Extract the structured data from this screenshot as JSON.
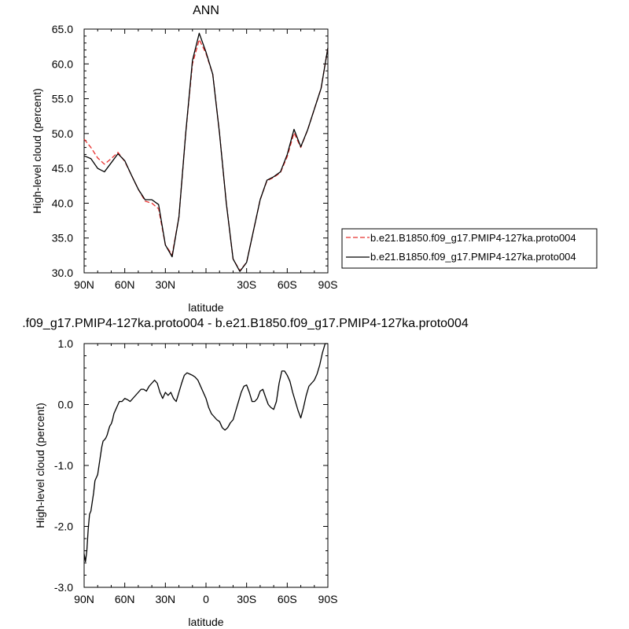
{
  "chart_data": [
    {
      "type": "line",
      "title": "ANN",
      "xlabel": "latitude",
      "ylabel": "High-level cloud (percent)",
      "xlim": [
        90,
        -90
      ],
      "ylim": [
        30.0,
        65.0
      ],
      "x_ticks": [
        90,
        60,
        30,
        0,
        -30,
        -60,
        -90
      ],
      "x_tick_labels": [
        "90N",
        "60N",
        "30N",
        "",
        "30S",
        "60S",
        "90S"
      ],
      "y_ticks": [
        30.0,
        35.0,
        40.0,
        45.0,
        50.0,
        55.0,
        60.0,
        65.0
      ],
      "y_tick_labels": [
        "30.0",
        "35.0",
        "40.0",
        "45.0",
        "50.0",
        "55.0",
        "60.0",
        "65.0"
      ],
      "legend_placement": "right",
      "series": [
        {
          "name": "b.e21.B1850.f09_g17.PMIP4-127ka.proto004",
          "color": "#e8302e",
          "dash": "dashed",
          "x": [
            90,
            85,
            80,
            75,
            70,
            65,
            60,
            55,
            50,
            45,
            40,
            35,
            30,
            25,
            20,
            15,
            10,
            5,
            0,
            -5,
            -10,
            -15,
            -20,
            -25,
            -30,
            -35,
            -40,
            -45,
            -50,
            -55,
            -60,
            -65,
            -70,
            -75,
            -80,
            -85,
            -90
          ],
          "y": [
            49.2,
            48.0,
            46.5,
            45.6,
            46.4,
            47.3,
            46.0,
            44.0,
            42.0,
            40.3,
            40.0,
            39.2,
            34.0,
            32.6,
            38.0,
            50.0,
            60.0,
            63.5,
            61.5,
            58.5,
            50.0,
            40.0,
            32.0,
            30.3,
            31.5,
            36.0,
            40.5,
            43.2,
            43.7,
            44.4,
            46.7,
            50.1,
            48.0,
            50.5,
            53.5,
            56.5,
            62.3
          ]
        },
        {
          "name": "b.e21.B1850.f09_g17.PMIP4-127ka.proto004",
          "color": "#000000",
          "dash": "solid",
          "x": [
            90,
            85,
            80,
            75,
            70,
            65,
            60,
            55,
            50,
            45,
            40,
            35,
            30,
            25,
            20,
            15,
            10,
            5,
            0,
            -5,
            -10,
            -15,
            -20,
            -25,
            -30,
            -35,
            -40,
            -45,
            -50,
            -55,
            -60,
            -65,
            -70,
            -75,
            -80,
            -85,
            -90
          ],
          "y": [
            46.8,
            46.4,
            45.0,
            44.5,
            45.8,
            47.1,
            46.1,
            44.0,
            42.0,
            40.5,
            40.5,
            39.8,
            34.0,
            32.3,
            38.0,
            50.0,
            60.5,
            64.4,
            61.7,
            58.5,
            50.0,
            40.0,
            32.0,
            30.2,
            31.5,
            36.0,
            40.5,
            43.3,
            43.8,
            44.5,
            47.0,
            50.6,
            48.1,
            50.5,
            53.5,
            56.5,
            62.3
          ]
        }
      ]
    },
    {
      "type": "line",
      "title": ".f09_g17.PMIP4-127ka.proto004 - b.e21.B1850.f09_g17.PMIP4-127ka.proto004",
      "xlabel": "latitude",
      "ylabel": "High-level cloud (percent)",
      "xlim": [
        90,
        -90
      ],
      "ylim": [
        -3.0,
        1.0
      ],
      "x_ticks": [
        90,
        60,
        30,
        0,
        -30,
        -60,
        -90
      ],
      "x_tick_labels": [
        "90N",
        "60N",
        "30N",
        "0",
        "30S",
        "60S",
        "90S"
      ],
      "y_ticks": [
        -3.0,
        -2.0,
        -1.0,
        0.0,
        1.0
      ],
      "y_tick_labels": [
        "-3.0",
        "-2.0",
        "-1.0",
        "0.0",
        "1.0"
      ],
      "series": [
        {
          "color": "#000000",
          "dash": "solid",
          "x": [
            90,
            89,
            88,
            87,
            86,
            85,
            84,
            83,
            82,
            81,
            80,
            79,
            78,
            77,
            76,
            75,
            74,
            73,
            72,
            71,
            70,
            69,
            68,
            66,
            64,
            62,
            60,
            58,
            56,
            54,
            52,
            50,
            48,
            46,
            44,
            42,
            40,
            38,
            36,
            34,
            32,
            30,
            28,
            26,
            24,
            22,
            20,
            18,
            16,
            14,
            12,
            10,
            8,
            6,
            4,
            2,
            0,
            -2,
            -4,
            -6,
            -8,
            -10,
            -12,
            -14,
            -16,
            -18,
            -20,
            -22,
            -24,
            -26,
            -28,
            -30,
            -32,
            -34,
            -36,
            -38,
            -40,
            -42,
            -44,
            -46,
            -48,
            -50,
            -52,
            -54,
            -56,
            -58,
            -60,
            -62,
            -64,
            -66,
            -68,
            -70,
            -72,
            -74,
            -76,
            -78,
            -80,
            -82,
            -84,
            -86,
            -88,
            -89,
            -90
          ],
          "y": [
            -2.45,
            -2.58,
            -2.4,
            -2.05,
            -1.8,
            -1.75,
            -1.6,
            -1.45,
            -1.25,
            -1.2,
            -1.15,
            -1.0,
            -0.85,
            -0.7,
            -0.6,
            -0.58,
            -0.55,
            -0.5,
            -0.42,
            -0.35,
            -0.32,
            -0.25,
            -0.15,
            -0.05,
            0.05,
            0.05,
            0.1,
            0.08,
            0.05,
            0.1,
            0.15,
            0.2,
            0.25,
            0.25,
            0.22,
            0.3,
            0.35,
            0.4,
            0.35,
            0.2,
            0.1,
            0.2,
            0.15,
            0.2,
            0.1,
            0.05,
            0.2,
            0.35,
            0.48,
            0.52,
            0.5,
            0.48,
            0.45,
            0.4,
            0.3,
            0.2,
            0.1,
            -0.05,
            -0.15,
            -0.2,
            -0.25,
            -0.28,
            -0.38,
            -0.42,
            -0.38,
            -0.3,
            -0.25,
            -0.1,
            0.05,
            0.2,
            0.3,
            0.32,
            0.2,
            0.05,
            0.05,
            0.1,
            0.22,
            0.25,
            0.12,
            0.0,
            -0.05,
            -0.08,
            0.05,
            0.35,
            0.55,
            0.55,
            0.48,
            0.38,
            0.2,
            0.05,
            -0.1,
            -0.22,
            -0.05,
            0.15,
            0.3,
            0.35,
            0.4,
            0.5,
            0.65,
            0.85,
            1.0,
            1.0,
            1.0
          ]
        }
      ]
    }
  ]
}
